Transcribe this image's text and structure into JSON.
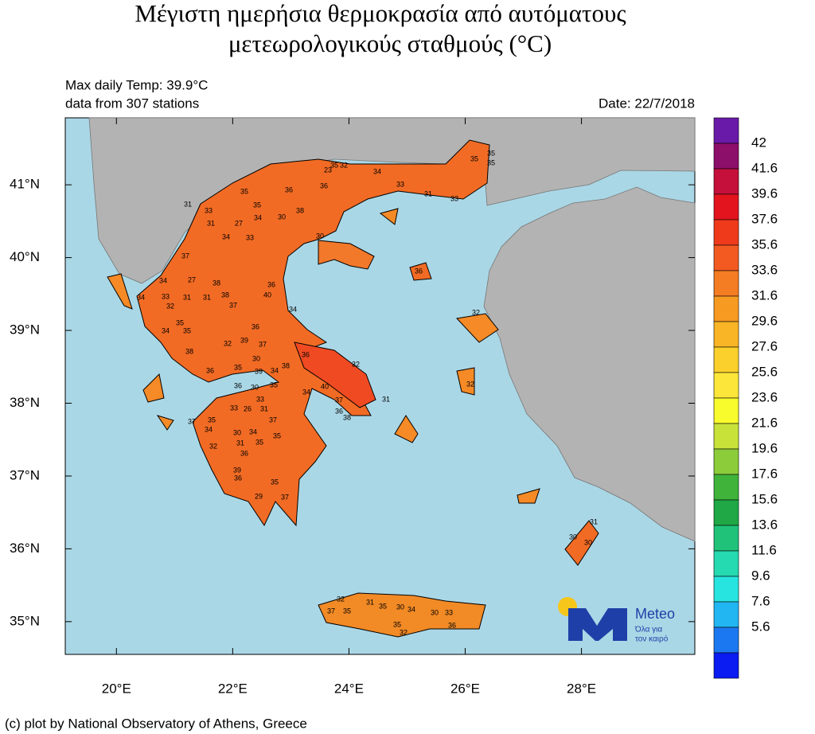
{
  "map": {
    "title": [
      "Μέγιστη ημερήσια θερμοκρασία από αυτόματους",
      "μετεωρολογικούς σταθμούς (°C)"
    ],
    "max_temp": "Max daily Temp: 39.9°C",
    "stations_count": "data from 307 stations",
    "date": "Date: 22/7/2018",
    "lat_range": [
      34.55,
      41.92
    ],
    "lon_range": [
      19.12,
      29.95
    ],
    "lat_ticks": [
      {
        "value": 41,
        "label": "41°N"
      },
      {
        "value": 40,
        "label": "40°N"
      },
      {
        "value": 39,
        "label": "39°N"
      },
      {
        "value": 38,
        "label": "38°N"
      },
      {
        "value": 37,
        "label": "37°N"
      },
      {
        "value": 36,
        "label": "36°N"
      },
      {
        "value": 35,
        "label": "35°N"
      }
    ],
    "lon_ticks": [
      {
        "value": 20,
        "label": "20°E"
      },
      {
        "value": 22,
        "label": "22°E"
      },
      {
        "value": 24,
        "label": "24°E"
      },
      {
        "value": 26,
        "label": "26°E"
      },
      {
        "value": 28,
        "label": "28°E"
      }
    ],
    "stations": [
      "35",
      "23",
      "32",
      "34",
      "33",
      "31",
      "33",
      "35",
      "35",
      "35",
      "35",
      "36",
      "36",
      "31",
      "33",
      "35",
      "31",
      "27",
      "34",
      "33",
      "34",
      "30",
      "38",
      "30",
      "37",
      "34",
      "27",
      "38",
      "36",
      "40",
      "33",
      "31",
      "31",
      "38",
      "37",
      "32",
      "34",
      "34",
      "35",
      "36",
      "34",
      "35",
      "32",
      "39",
      "37",
      "36",
      "38",
      "36",
      "35",
      "30",
      "34",
      "39",
      "38",
      "36",
      "30",
      "35",
      "34",
      "40",
      "36",
      "37",
      "38",
      "31",
      "32",
      "33",
      "33",
      "26",
      "31",
      "37",
      "37",
      "35",
      "34",
      "30",
      "34",
      "35",
      "31",
      "35",
      "32",
      "36",
      "39",
      "36",
      "35",
      "29",
      "37",
      "36",
      "32",
      "32",
      "30",
      "30",
      "31",
      "32",
      "31",
      "35",
      "30",
      "34",
      "37",
      "35",
      "30",
      "33",
      "35",
      "32",
      "36"
    ],
    "colorbar": {
      "labels": [
        42,
        41.6,
        39.6,
        37.6,
        35.6,
        33.6,
        31.6,
        29.6,
        27.6,
        25.6,
        23.6,
        21.6,
        19.6,
        17.6,
        15.6,
        13.6,
        11.6,
        9.6,
        7.6,
        5.6
      ],
      "colors": [
        "#6a1aa8",
        "#8c0f6a",
        "#c4103a",
        "#e3141e",
        "#ef3a1c",
        "#f25a22",
        "#f47c22",
        "#f79a22",
        "#f9b526",
        "#fbd02c",
        "#fde63a",
        "#f8fb2c",
        "#c8e23a",
        "#8ccc3a",
        "#3fb33a",
        "#1fa845",
        "#20c27a",
        "#25d9b0",
        "#28e4e0",
        "#22b6f2",
        "#1c78f0",
        "#0a1cf2"
      ]
    },
    "logo": {
      "name": "Meteo",
      "tagline": [
        "Όλα για",
        "τον καιρό"
      ]
    },
    "credit": "(c) plot by National Observatory of Athens, Greece"
  }
}
